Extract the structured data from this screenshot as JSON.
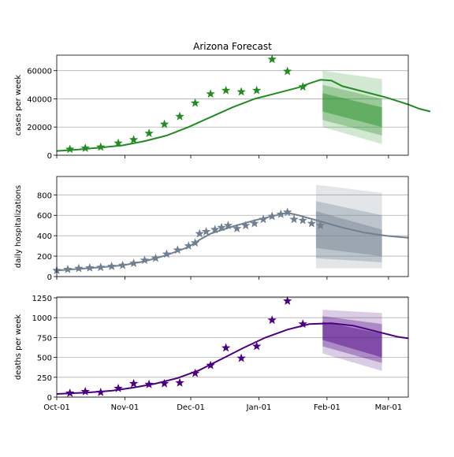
{
  "title": "Arizona Forecast",
  "x_tick_labels": [
    "Oct-01",
    "Nov-01",
    "Dec-01",
    "Jan-01",
    "Feb-01",
    "Mar-01"
  ],
  "chart_data": [
    {
      "type": "line",
      "ylabel": "cases per week",
      "xlim": [
        "2020-10-01",
        "2021-03-10"
      ],
      "ylim": [
        0,
        71000
      ],
      "yticks": [
        0,
        20000,
        40000,
        60000
      ],
      "ytick_labels": [
        "0",
        "20000",
        "40000",
        "60000"
      ],
      "grid": "horizontal",
      "color": "#228b22",
      "model": [
        [
          0,
          3000
        ],
        [
          10,
          4000
        ],
        [
          20,
          5500
        ],
        [
          30,
          7000
        ],
        [
          40,
          10000
        ],
        [
          50,
          14000
        ],
        [
          60,
          20000
        ],
        [
          70,
          27000
        ],
        [
          80,
          34000
        ],
        [
          90,
          40000
        ],
        [
          100,
          44000
        ],
        [
          110,
          48000
        ],
        [
          115,
          51000
        ],
        [
          120,
          53500
        ],
        [
          125,
          53000
        ],
        [
          130,
          49000
        ],
        [
          140,
          45000
        ],
        [
          150,
          41000
        ],
        [
          160,
          36000
        ],
        [
          165,
          33000
        ],
        [
          170,
          31000
        ]
      ],
      "observed": [
        [
          6,
          4200
        ],
        [
          13,
          5000
        ],
        [
          20,
          5800
        ],
        [
          28,
          8600
        ],
        [
          35,
          11000
        ],
        [
          42,
          15500
        ],
        [
          49,
          22000
        ],
        [
          56,
          27500
        ],
        [
          63,
          37000
        ],
        [
          70,
          43500
        ],
        [
          77,
          46000
        ],
        [
          84,
          45000
        ],
        [
          91,
          46000
        ],
        [
          98,
          68000
        ],
        [
          105,
          59500
        ],
        [
          112,
          48500
        ]
      ],
      "bands": {
        "x": [
          121,
          148
        ],
        "outer": [
          [
            20000,
            60000
          ],
          [
            8000,
            54000
          ]
        ],
        "middle": [
          [
            25000,
            50000
          ],
          [
            14000,
            40000
          ]
        ],
        "inner": [
          [
            31000,
            44000
          ],
          [
            20000,
            34000
          ]
        ]
      }
    },
    {
      "type": "line",
      "ylabel": "daily hospitalizations",
      "xlim": [
        "2020-10-01",
        "2021-03-10"
      ],
      "ylim": [
        0,
        980
      ],
      "yticks": [
        0,
        200,
        400,
        600,
        800
      ],
      "ytick_labels": [
        "0",
        "200",
        "400",
        "600",
        "800"
      ],
      "grid": "horizontal",
      "color": "#708090",
      "model": [
        [
          0,
          60
        ],
        [
          20,
          90
        ],
        [
          30,
          110
        ],
        [
          40,
          150
        ],
        [
          50,
          210
        ],
        [
          60,
          290
        ],
        [
          65,
          360
        ],
        [
          70,
          420
        ],
        [
          80,
          490
        ],
        [
          90,
          550
        ],
        [
          100,
          600
        ],
        [
          105,
          625
        ],
        [
          110,
          600
        ],
        [
          120,
          540
        ],
        [
          130,
          480
        ],
        [
          140,
          430
        ],
        [
          150,
          400
        ],
        [
          160,
          380
        ]
      ],
      "observed": [
        [
          0,
          60
        ],
        [
          5,
          70
        ],
        [
          10,
          80
        ],
        [
          15,
          85
        ],
        [
          20,
          90
        ],
        [
          25,
          100
        ],
        [
          30,
          110
        ],
        [
          35,
          130
        ],
        [
          40,
          160
        ],
        [
          45,
          180
        ],
        [
          50,
          220
        ],
        [
          55,
          260
        ],
        [
          60,
          300
        ],
        [
          63,
          330
        ],
        [
          65,
          420
        ],
        [
          68,
          440
        ],
        [
          72,
          460
        ],
        [
          75,
          480
        ],
        [
          78,
          500
        ],
        [
          82,
          470
        ],
        [
          86,
          500
        ],
        [
          90,
          520
        ],
        [
          94,
          560
        ],
        [
          98,
          590
        ],
        [
          102,
          610
        ],
        [
          105,
          630
        ],
        [
          108,
          560
        ],
        [
          112,
          550
        ],
        [
          116,
          520
        ],
        [
          120,
          500
        ]
      ],
      "bands": {
        "x": [
          118,
          148
        ],
        "outer": [
          [
            80,
            900
          ],
          [
            80,
            820
          ]
        ],
        "middle": [
          [
            180,
            740
          ],
          [
            140,
            600
          ]
        ],
        "inner": [
          [
            280,
            640
          ],
          [
            200,
            460
          ]
        ]
      }
    },
    {
      "type": "line",
      "ylabel": "deaths per week",
      "xlim": [
        "2020-10-01",
        "2021-03-10"
      ],
      "ylim": [
        0,
        1260
      ],
      "yticks": [
        0,
        250,
        500,
        750,
        1000,
        1250
      ],
      "ytick_labels": [
        "0",
        "250",
        "500",
        "750",
        "1000",
        "1250"
      ],
      "grid": "horizontal",
      "color": "#4b0082",
      "model": [
        [
          0,
          40
        ],
        [
          15,
          60
        ],
        [
          25,
          80
        ],
        [
          35,
          120
        ],
        [
          45,
          170
        ],
        [
          55,
          240
        ],
        [
          65,
          340
        ],
        [
          75,
          480
        ],
        [
          85,
          620
        ],
        [
          95,
          750
        ],
        [
          105,
          850
        ],
        [
          115,
          920
        ],
        [
          125,
          930
        ],
        [
          135,
          900
        ],
        [
          145,
          830
        ],
        [
          155,
          760
        ],
        [
          160,
          740
        ]
      ],
      "observed": [
        [
          6,
          50
        ],
        [
          13,
          70
        ],
        [
          20,
          60
        ],
        [
          28,
          110
        ],
        [
          35,
          170
        ],
        [
          42,
          160
        ],
        [
          49,
          170
        ],
        [
          56,
          180
        ],
        [
          63,
          300
        ],
        [
          70,
          400
        ],
        [
          77,
          620
        ],
        [
          84,
          490
        ],
        [
          91,
          640
        ],
        [
          98,
          970
        ],
        [
          105,
          1210
        ],
        [
          112,
          920
        ]
      ],
      "bands": {
        "x": [
          121,
          148
        ],
        "outer": [
          [
            550,
            1100
          ],
          [
            330,
            1060
          ]
        ],
        "middle": [
          [
            640,
            1020
          ],
          [
            430,
            920
          ]
        ],
        "inner": [
          [
            720,
            950
          ],
          [
            500,
            800
          ]
        ]
      }
    }
  ]
}
